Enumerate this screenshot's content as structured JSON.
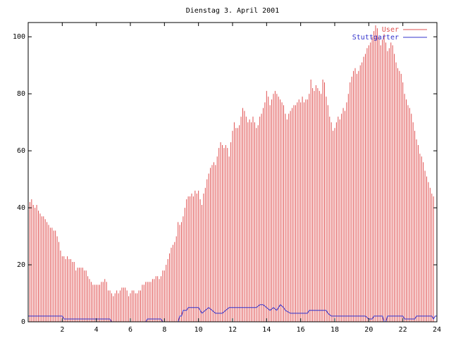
{
  "chart_data": {
    "type": "bar",
    "title": "Dienstag 3. April 2001",
    "xlabel": "",
    "ylabel": "",
    "xlim": [
      0,
      24
    ],
    "ylim": [
      0,
      105
    ],
    "x_ticks": [
      2,
      4,
      6,
      8,
      10,
      12,
      14,
      16,
      18,
      20,
      22,
      24
    ],
    "y_ticks": [
      0,
      20,
      40,
      60,
      80,
      100
    ],
    "grid": false,
    "legend_position": "top-right",
    "series": [
      {
        "name": "User",
        "style": "impulses",
        "color": "#e05050",
        "points": [
          [
            0.0,
            45
          ],
          [
            0.1,
            42
          ],
          [
            0.2,
            43
          ],
          [
            0.3,
            41
          ],
          [
            0.4,
            40
          ],
          [
            0.5,
            41
          ],
          [
            0.6,
            39
          ],
          [
            0.7,
            38
          ],
          [
            0.8,
            37
          ],
          [
            0.9,
            37
          ],
          [
            1.0,
            36
          ],
          [
            1.1,
            35
          ],
          [
            1.2,
            34
          ],
          [
            1.3,
            33
          ],
          [
            1.4,
            33
          ],
          [
            1.5,
            32
          ],
          [
            1.6,
            32
          ],
          [
            1.7,
            30
          ],
          [
            1.8,
            28
          ],
          [
            1.9,
            25
          ],
          [
            2.0,
            23
          ],
          [
            2.1,
            23
          ],
          [
            2.2,
            22
          ],
          [
            2.3,
            23
          ],
          [
            2.4,
            22
          ],
          [
            2.5,
            22
          ],
          [
            2.6,
            21
          ],
          [
            2.7,
            21
          ],
          [
            2.8,
            18
          ],
          [
            2.9,
            19
          ],
          [
            3.0,
            19
          ],
          [
            3.1,
            19
          ],
          [
            3.2,
            19
          ],
          [
            3.3,
            18
          ],
          [
            3.4,
            18
          ],
          [
            3.5,
            16
          ],
          [
            3.6,
            15
          ],
          [
            3.7,
            14
          ],
          [
            3.8,
            13
          ],
          [
            3.9,
            13
          ],
          [
            4.0,
            13
          ],
          [
            4.1,
            13
          ],
          [
            4.2,
            13
          ],
          [
            4.3,
            14
          ],
          [
            4.4,
            14
          ],
          [
            4.5,
            15
          ],
          [
            4.6,
            14
          ],
          [
            4.7,
            11
          ],
          [
            4.8,
            11
          ],
          [
            4.9,
            10
          ],
          [
            5.0,
            9
          ],
          [
            5.1,
            10
          ],
          [
            5.2,
            11
          ],
          [
            5.3,
            10
          ],
          [
            5.4,
            11
          ],
          [
            5.5,
            12
          ],
          [
            5.6,
            12
          ],
          [
            5.7,
            12
          ],
          [
            5.8,
            11
          ],
          [
            5.9,
            9
          ],
          [
            6.0,
            10
          ],
          [
            6.1,
            11
          ],
          [
            6.2,
            11
          ],
          [
            6.3,
            10
          ],
          [
            6.4,
            10
          ],
          [
            6.5,
            11
          ],
          [
            6.6,
            11
          ],
          [
            6.7,
            13
          ],
          [
            6.8,
            13
          ],
          [
            6.9,
            14
          ],
          [
            7.0,
            14
          ],
          [
            7.1,
            14
          ],
          [
            7.2,
            14
          ],
          [
            7.3,
            15
          ],
          [
            7.4,
            15
          ],
          [
            7.5,
            16
          ],
          [
            7.6,
            16
          ],
          [
            7.7,
            15
          ],
          [
            7.8,
            16
          ],
          [
            7.9,
            18
          ],
          [
            8.0,
            18
          ],
          [
            8.1,
            20
          ],
          [
            8.2,
            22
          ],
          [
            8.3,
            24
          ],
          [
            8.4,
            26
          ],
          [
            8.5,
            27
          ],
          [
            8.6,
            28
          ],
          [
            8.7,
            30
          ],
          [
            8.8,
            35
          ],
          [
            8.9,
            34
          ],
          [
            9.0,
            35
          ],
          [
            9.1,
            37
          ],
          [
            9.2,
            40
          ],
          [
            9.3,
            43
          ],
          [
            9.4,
            44
          ],
          [
            9.5,
            44
          ],
          [
            9.6,
            45
          ],
          [
            9.7,
            44
          ],
          [
            9.8,
            46
          ],
          [
            9.9,
            45
          ],
          [
            10.0,
            46
          ],
          [
            10.1,
            43
          ],
          [
            10.2,
            41
          ],
          [
            10.3,
            45
          ],
          [
            10.4,
            47
          ],
          [
            10.5,
            50
          ],
          [
            10.6,
            52
          ],
          [
            10.7,
            54
          ],
          [
            10.8,
            55
          ],
          [
            10.9,
            56
          ],
          [
            11.0,
            55
          ],
          [
            11.1,
            58
          ],
          [
            11.2,
            61
          ],
          [
            11.3,
            63
          ],
          [
            11.4,
            62
          ],
          [
            11.5,
            61
          ],
          [
            11.6,
            62
          ],
          [
            11.7,
            61
          ],
          [
            11.8,
            58
          ],
          [
            11.9,
            63
          ],
          [
            12.0,
            67
          ],
          [
            12.1,
            70
          ],
          [
            12.2,
            68
          ],
          [
            12.3,
            68
          ],
          [
            12.4,
            69
          ],
          [
            12.5,
            72
          ],
          [
            12.6,
            75
          ],
          [
            12.7,
            74
          ],
          [
            12.8,
            72
          ],
          [
            12.9,
            70
          ],
          [
            13.0,
            71
          ],
          [
            13.1,
            70
          ],
          [
            13.2,
            72
          ],
          [
            13.3,
            70
          ],
          [
            13.4,
            68
          ],
          [
            13.5,
            69
          ],
          [
            13.6,
            72
          ],
          [
            13.7,
            73
          ],
          [
            13.8,
            75
          ],
          [
            13.9,
            77
          ],
          [
            14.0,
            81
          ],
          [
            14.1,
            79
          ],
          [
            14.2,
            76
          ],
          [
            14.3,
            78
          ],
          [
            14.4,
            80
          ],
          [
            14.5,
            81
          ],
          [
            14.6,
            80
          ],
          [
            14.7,
            79
          ],
          [
            14.8,
            78
          ],
          [
            14.9,
            77
          ],
          [
            15.0,
            76
          ],
          [
            15.1,
            73
          ],
          [
            15.2,
            71
          ],
          [
            15.3,
            73
          ],
          [
            15.4,
            74
          ],
          [
            15.5,
            75
          ],
          [
            15.6,
            76
          ],
          [
            15.7,
            76
          ],
          [
            15.8,
            77
          ],
          [
            15.9,
            78
          ],
          [
            16.0,
            77
          ],
          [
            16.1,
            79
          ],
          [
            16.2,
            77
          ],
          [
            16.3,
            78
          ],
          [
            16.4,
            78
          ],
          [
            16.5,
            80
          ],
          [
            16.6,
            85
          ],
          [
            16.7,
            82
          ],
          [
            16.8,
            81
          ],
          [
            16.9,
            83
          ],
          [
            17.0,
            82
          ],
          [
            17.1,
            81
          ],
          [
            17.2,
            80
          ],
          [
            17.3,
            85
          ],
          [
            17.4,
            84
          ],
          [
            17.5,
            79
          ],
          [
            17.6,
            76
          ],
          [
            17.7,
            72
          ],
          [
            17.8,
            70
          ],
          [
            17.9,
            67
          ],
          [
            18.0,
            68
          ],
          [
            18.1,
            70
          ],
          [
            18.2,
            72
          ],
          [
            18.3,
            71
          ],
          [
            18.4,
            73
          ],
          [
            18.5,
            75
          ],
          [
            18.6,
            74
          ],
          [
            18.7,
            77
          ],
          [
            18.8,
            80
          ],
          [
            18.9,
            84
          ],
          [
            19.0,
            86
          ],
          [
            19.1,
            88
          ],
          [
            19.2,
            89
          ],
          [
            19.3,
            87
          ],
          [
            19.4,
            88
          ],
          [
            19.5,
            90
          ],
          [
            19.6,
            91
          ],
          [
            19.7,
            93
          ],
          [
            19.8,
            94
          ],
          [
            19.9,
            96
          ],
          [
            20.0,
            97
          ],
          [
            20.1,
            98
          ],
          [
            20.2,
            100
          ],
          [
            20.3,
            102
          ],
          [
            20.4,
            104
          ],
          [
            20.5,
            103
          ],
          [
            20.6,
            100
          ],
          [
            20.7,
            97
          ],
          [
            20.8,
            99
          ],
          [
            20.9,
            101
          ],
          [
            21.0,
            98
          ],
          [
            21.1,
            95
          ],
          [
            21.2,
            96
          ],
          [
            21.3,
            98
          ],
          [
            21.4,
            97
          ],
          [
            21.5,
            94
          ],
          [
            21.6,
            91
          ],
          [
            21.7,
            89
          ],
          [
            21.8,
            88
          ],
          [
            21.9,
            87
          ],
          [
            22.0,
            84
          ],
          [
            22.1,
            80
          ],
          [
            22.2,
            78
          ],
          [
            22.3,
            76
          ],
          [
            22.4,
            75
          ],
          [
            22.5,
            73
          ],
          [
            22.6,
            70
          ],
          [
            22.7,
            67
          ],
          [
            22.8,
            64
          ],
          [
            22.9,
            62
          ],
          [
            23.0,
            59
          ],
          [
            23.1,
            58
          ],
          [
            23.2,
            56
          ],
          [
            23.3,
            53
          ],
          [
            23.4,
            51
          ],
          [
            23.5,
            49
          ],
          [
            23.6,
            47
          ],
          [
            23.7,
            45
          ],
          [
            23.8,
            44
          ]
        ]
      },
      {
        "name": "Stuttgarter",
        "style": "line",
        "color": "#3333cc",
        "points": [
          [
            0,
            2
          ],
          [
            2,
            2
          ],
          [
            2.1,
            1
          ],
          [
            2.5,
            1
          ],
          [
            2.6,
            1
          ],
          [
            4.8,
            1
          ],
          [
            4.9,
            0
          ],
          [
            6.9,
            0
          ],
          [
            7.0,
            1
          ],
          [
            7.8,
            1
          ],
          [
            7.9,
            0
          ],
          [
            8.8,
            0
          ],
          [
            8.9,
            2
          ],
          [
            9.0,
            2
          ],
          [
            9.1,
            4
          ],
          [
            9.3,
            4
          ],
          [
            9.4,
            5
          ],
          [
            9.6,
            5
          ],
          [
            9.7,
            5
          ],
          [
            10.0,
            5
          ],
          [
            10.1,
            4
          ],
          [
            10.2,
            3
          ],
          [
            10.4,
            4
          ],
          [
            10.6,
            5
          ],
          [
            10.8,
            4
          ],
          [
            11.0,
            3
          ],
          [
            11.4,
            3
          ],
          [
            11.6,
            4
          ],
          [
            11.8,
            5
          ],
          [
            12.0,
            5
          ],
          [
            13.0,
            5
          ],
          [
            13.4,
            5
          ],
          [
            13.6,
            6
          ],
          [
            13.8,
            6
          ],
          [
            14.0,
            5
          ],
          [
            14.2,
            4
          ],
          [
            14.4,
            5
          ],
          [
            14.6,
            4
          ],
          [
            14.8,
            6
          ],
          [
            15.0,
            5
          ],
          [
            15.1,
            4
          ],
          [
            15.4,
            3
          ],
          [
            16.0,
            3
          ],
          [
            16.4,
            3
          ],
          [
            16.5,
            4
          ],
          [
            17.0,
            4
          ],
          [
            17.5,
            4
          ],
          [
            17.6,
            3
          ],
          [
            17.8,
            2
          ],
          [
            19.8,
            2
          ],
          [
            20.0,
            1
          ],
          [
            20.2,
            1
          ],
          [
            20.3,
            2
          ],
          [
            20.8,
            2
          ],
          [
            20.9,
            0
          ],
          [
            21.0,
            0
          ],
          [
            21.1,
            2
          ],
          [
            22.0,
            2
          ],
          [
            22.1,
            1
          ],
          [
            22.7,
            1
          ],
          [
            22.8,
            2
          ],
          [
            23.7,
            2
          ],
          [
            23.8,
            1
          ],
          [
            23.9,
            2
          ],
          [
            24,
            2
          ]
        ]
      }
    ]
  }
}
